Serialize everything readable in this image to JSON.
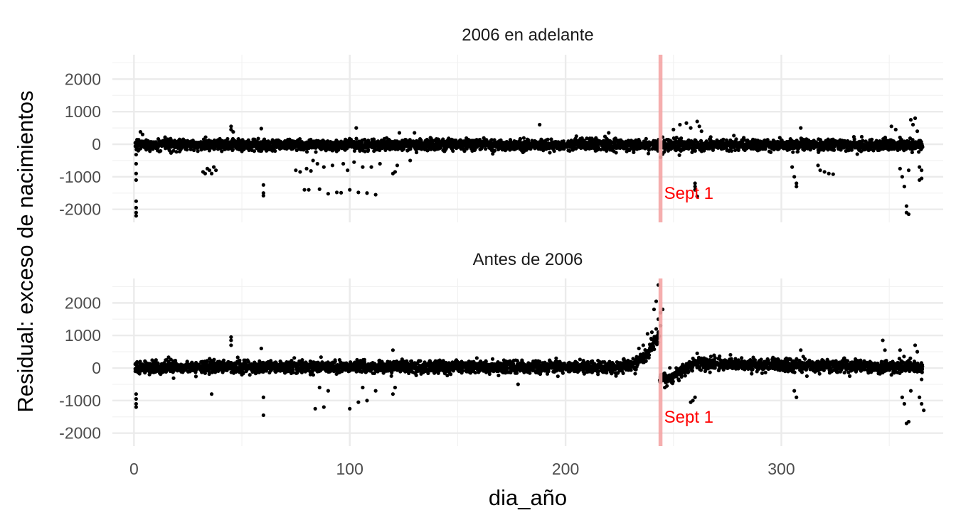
{
  "chart_data": {
    "type": "scatter",
    "xlabel": "dia_año",
    "ylabel": "Residual: exceso de nacimientos",
    "xlim": [
      -10,
      375
    ],
    "ylim": [
      -2400,
      2750
    ],
    "x_ticks": [
      0,
      100,
      200,
      300
    ],
    "y_ticks": [
      -2000,
      -1000,
      0,
      1000,
      2000
    ],
    "grid": true,
    "point_color": "#000000",
    "vline_color": "#f4a6a6",
    "annotation_color": "#ff0000",
    "panels": [
      {
        "title": "2006 en adelante",
        "vline_x": 244,
        "annotation": {
          "text": "Sept 1",
          "x": 245,
          "y": -1500
        },
        "noise_sd": 85,
        "baseline": [
          [
            0,
            -20
          ],
          [
            364,
            -20
          ]
        ],
        "outliers": [
          {
            "x": 1,
            "y": -2200
          },
          {
            "x": 1,
            "y": -2100
          },
          {
            "x": 1,
            "y": -1950
          },
          {
            "x": 1,
            "y": -1750
          },
          {
            "x": 1,
            "y": -1100
          },
          {
            "x": 1,
            "y": -900
          },
          {
            "x": 1,
            "y": -600
          },
          {
            "x": 1,
            "y": -320
          },
          {
            "x": 2,
            "y": -200
          },
          {
            "x": 3,
            "y": 380
          },
          {
            "x": 4,
            "y": 300
          },
          {
            "x": 32,
            "y": -850
          },
          {
            "x": 33,
            "y": -900
          },
          {
            "x": 34,
            "y": -750
          },
          {
            "x": 35,
            "y": -800
          },
          {
            "x": 36,
            "y": -900
          },
          {
            "x": 37,
            "y": -700
          },
          {
            "x": 38,
            "y": -800
          },
          {
            "x": 45,
            "y": 550
          },
          {
            "x": 45,
            "y": 450
          },
          {
            "x": 46,
            "y": 380
          },
          {
            "x": 60,
            "y": -1250
          },
          {
            "x": 60,
            "y": -1500
          },
          {
            "x": 60,
            "y": -1580
          },
          {
            "x": 59,
            "y": 480
          },
          {
            "x": 75,
            "y": -800
          },
          {
            "x": 77,
            "y": -850
          },
          {
            "x": 80,
            "y": -750
          },
          {
            "x": 82,
            "y": -820
          },
          {
            "x": 83,
            "y": -500
          },
          {
            "x": 85,
            "y": -600
          },
          {
            "x": 86,
            "y": -1380
          },
          {
            "x": 88,
            "y": -700
          },
          {
            "x": 90,
            "y": -1520
          },
          {
            "x": 92,
            "y": -650
          },
          {
            "x": 94,
            "y": -1480
          },
          {
            "x": 96,
            "y": -1490
          },
          {
            "x": 97,
            "y": -600
          },
          {
            "x": 99,
            "y": -800
          },
          {
            "x": 100,
            "y": -1400
          },
          {
            "x": 102,
            "y": -550
          },
          {
            "x": 104,
            "y": -1480
          },
          {
            "x": 106,
            "y": -700
          },
          {
            "x": 108,
            "y": -1500
          },
          {
            "x": 110,
            "y": -700
          },
          {
            "x": 112,
            "y": -1550
          },
          {
            "x": 114,
            "y": -600
          },
          {
            "x": 79,
            "y": -1400
          },
          {
            "x": 81,
            "y": -1400
          },
          {
            "x": 103,
            "y": 500
          },
          {
            "x": 120,
            "y": -900
          },
          {
            "x": 121,
            "y": -850
          },
          {
            "x": 122,
            "y": -650
          },
          {
            "x": 123,
            "y": 350
          },
          {
            "x": 128,
            "y": -500
          },
          {
            "x": 130,
            "y": 350
          },
          {
            "x": 188,
            "y": 600
          },
          {
            "x": 220,
            "y": 350
          },
          {
            "x": 244,
            "y": -400
          },
          {
            "x": 245,
            "y": -300
          },
          {
            "x": 250,
            "y": 450
          },
          {
            "x": 253,
            "y": 600
          },
          {
            "x": 256,
            "y": 650
          },
          {
            "x": 258,
            "y": 500
          },
          {
            "x": 260,
            "y": -1200
          },
          {
            "x": 260,
            "y": -1300
          },
          {
            "x": 260,
            "y": -1400
          },
          {
            "x": 261,
            "y": -1600
          },
          {
            "x": 261,
            "y": 700
          },
          {
            "x": 262,
            "y": 550
          },
          {
            "x": 263,
            "y": 400
          },
          {
            "x": 305,
            "y": -700
          },
          {
            "x": 306,
            "y": -1000
          },
          {
            "x": 307,
            "y": -1200
          },
          {
            "x": 307,
            "y": -1300
          },
          {
            "x": 309,
            "y": 500
          },
          {
            "x": 317,
            "y": -650
          },
          {
            "x": 318,
            "y": -800
          },
          {
            "x": 320,
            "y": -850
          },
          {
            "x": 322,
            "y": -900
          },
          {
            "x": 324,
            "y": -920
          },
          {
            "x": 351,
            "y": 550
          },
          {
            "x": 353,
            "y": 450
          },
          {
            "x": 355,
            "y": -750
          },
          {
            "x": 356,
            "y": -1000
          },
          {
            "x": 357,
            "y": -1300
          },
          {
            "x": 358,
            "y": -1900
          },
          {
            "x": 358,
            "y": -2100
          },
          {
            "x": 359,
            "y": -2150
          },
          {
            "x": 359,
            "y": -800
          },
          {
            "x": 360,
            "y": 750
          },
          {
            "x": 361,
            "y": 600
          },
          {
            "x": 362,
            "y": 800
          },
          {
            "x": 363,
            "y": 400
          },
          {
            "x": 364,
            "y": -700
          },
          {
            "x": 364,
            "y": -1100
          },
          {
            "x": 365,
            "y": -1050
          },
          {
            "x": 365,
            "y": -800
          }
        ]
      },
      {
        "title": "Antes de 2006",
        "vline_x": 244,
        "annotation": {
          "text": "Sept 1",
          "x": 245,
          "y": -1500
        },
        "noise_sd": 95,
        "baseline": [
          [
            0,
            30
          ],
          [
            225,
            30
          ],
          [
            232,
            120
          ],
          [
            238,
            400
          ],
          [
            243,
            1000
          ],
          [
            244,
            -350
          ],
          [
            250,
            -250
          ],
          [
            260,
            150
          ],
          [
            265,
            120
          ],
          [
            364,
            30
          ]
        ],
        "outliers": [
          {
            "x": 1,
            "y": -1200
          },
          {
            "x": 1,
            "y": -1100
          },
          {
            "x": 1,
            "y": -950
          },
          {
            "x": 1,
            "y": -800
          },
          {
            "x": 36,
            "y": -800
          },
          {
            "x": 45,
            "y": 950
          },
          {
            "x": 45,
            "y": 850
          },
          {
            "x": 45,
            "y": 700
          },
          {
            "x": 59,
            "y": 600
          },
          {
            "x": 60,
            "y": -900
          },
          {
            "x": 60,
            "y": -1450
          },
          {
            "x": 84,
            "y": -1250
          },
          {
            "x": 86,
            "y": -600
          },
          {
            "x": 88,
            "y": -1200
          },
          {
            "x": 90,
            "y": -700
          },
          {
            "x": 100,
            "y": -1250
          },
          {
            "x": 104,
            "y": -1050
          },
          {
            "x": 106,
            "y": -600
          },
          {
            "x": 108,
            "y": -1000
          },
          {
            "x": 112,
            "y": -700
          },
          {
            "x": 120,
            "y": -800
          },
          {
            "x": 121,
            "y": -600
          },
          {
            "x": 120,
            "y": 550
          },
          {
            "x": 178,
            "y": -500
          },
          {
            "x": 243,
            "y": 2550
          },
          {
            "x": 242,
            "y": 2050
          },
          {
            "x": 241,
            "y": 1800
          },
          {
            "x": 244,
            "y": 1700
          },
          {
            "x": 245,
            "y": 1800
          },
          {
            "x": 243,
            "y": 1500
          },
          {
            "x": 244,
            "y": 1300
          },
          {
            "x": 242,
            "y": 1200
          },
          {
            "x": 240,
            "y": 1100
          },
          {
            "x": 238,
            "y": 1050
          },
          {
            "x": 236,
            "y": 700
          },
          {
            "x": 234,
            "y": 600
          },
          {
            "x": 246,
            "y": -600
          },
          {
            "x": 247,
            "y": -550
          },
          {
            "x": 258,
            "y": -1050
          },
          {
            "x": 259,
            "y": -1000
          },
          {
            "x": 260,
            "y": -900
          },
          {
            "x": 261,
            "y": 450
          },
          {
            "x": 306,
            "y": -700
          },
          {
            "x": 307,
            "y": -900
          },
          {
            "x": 309,
            "y": 550
          },
          {
            "x": 347,
            "y": 850
          },
          {
            "x": 348,
            "y": 550
          },
          {
            "x": 355,
            "y": 550
          },
          {
            "x": 356,
            "y": -900
          },
          {
            "x": 357,
            "y": -1100
          },
          {
            "x": 358,
            "y": -1700
          },
          {
            "x": 359,
            "y": -1650
          },
          {
            "x": 360,
            "y": -700
          },
          {
            "x": 362,
            "y": 700
          },
          {
            "x": 363,
            "y": 500
          },
          {
            "x": 364,
            "y": -900
          },
          {
            "x": 365,
            "y": -1100
          },
          {
            "x": 366,
            "y": -1300
          },
          {
            "x": 365,
            "y": -350
          }
        ]
      }
    ]
  }
}
